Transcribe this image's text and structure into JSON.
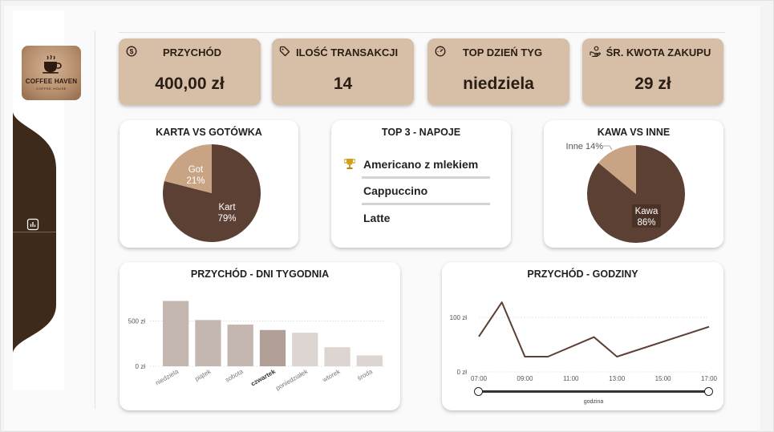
{
  "logo": {
    "title": "COFFEE HAVEN",
    "subtitle": "COFFEE HOUSE"
  },
  "kpis": [
    {
      "label": "PRZYCHÓD",
      "value": "400,00 zł",
      "icon": "dollar-coin-icon"
    },
    {
      "label": "ILOŚĆ TRANSAKCJI",
      "value": "14",
      "icon": "tag-icon"
    },
    {
      "label": "TOP DZIEŃ TYG",
      "value": "niedziela",
      "icon": "gauge-icon"
    },
    {
      "label": "ŚR. KWOTA ZAKUPU",
      "value": "29 zł",
      "icon": "coin-hand-icon"
    }
  ],
  "payment_card": {
    "title": "KARTA VS GOTÓWKA"
  },
  "top3_card": {
    "title": "TOP 3 - NAPOJE",
    "items": [
      "Americano z mlekiem",
      "Cappuccino",
      "Latte"
    ]
  },
  "coffee_card": {
    "title": "KAWA VS INNE"
  },
  "weekday_card": {
    "title": "PRZYCHÓD - DNI TYGODNIA"
  },
  "hours_card": {
    "title": "PRZYCHÓD - GODZINY",
    "slider_label": "godzina"
  },
  "colors": {
    "dark_brown": "#5c4033",
    "light_tan": "#c8a484",
    "kpi_bg": "#d6bea7",
    "nav_brown": "#3e2a1a"
  },
  "chart_data": [
    {
      "type": "pie",
      "title": "KARTA VS GOTÓWKA",
      "slices": [
        {
          "label": "Kart",
          "value": 79,
          "display": "79%",
          "color": "#5c4033"
        },
        {
          "label": "Got",
          "value": 21,
          "display": "21%",
          "color": "#c8a484"
        }
      ]
    },
    {
      "type": "pie",
      "title": "KAWA VS INNE",
      "slices": [
        {
          "label": "Kawa",
          "value": 86,
          "display": "86%",
          "color": "#5c4033"
        },
        {
          "label": "Inne",
          "value": 14,
          "display": "14%",
          "color": "#c8a484"
        }
      ]
    },
    {
      "type": "bar",
      "title": "PRZYCHÓD - DNI TYGODNIA",
      "categories": [
        "niedziela",
        "piątek",
        "sobota",
        "czwartek",
        "poniedziałek",
        "wtorek",
        "środa"
      ],
      "values": [
        720,
        510,
        460,
        400,
        370,
        210,
        120
      ],
      "highlight": "czwartek",
      "yticks": [
        0,
        500
      ],
      "ytick_labels": [
        "0 zł",
        "500 zł"
      ],
      "ylim": [
        0,
        760
      ]
    },
    {
      "type": "line",
      "title": "PRZYCHÓD - GODZINY",
      "x": [
        7,
        8,
        9,
        10,
        12,
        13,
        17
      ],
      "values": [
        65,
        128,
        28,
        28,
        64,
        28,
        83
      ],
      "xtick_values": [
        7,
        9,
        11,
        13,
        15,
        17
      ],
      "xtick_labels": [
        "07:00",
        "09:00",
        "11:00",
        "13:00",
        "15:00",
        "17:00"
      ],
      "yticks": [
        0,
        100
      ],
      "ytick_labels": [
        "0 zł",
        "100 zł"
      ],
      "xlim": [
        7,
        17
      ],
      "ylim": [
        0,
        140
      ],
      "xlabel": "godzina"
    }
  ]
}
